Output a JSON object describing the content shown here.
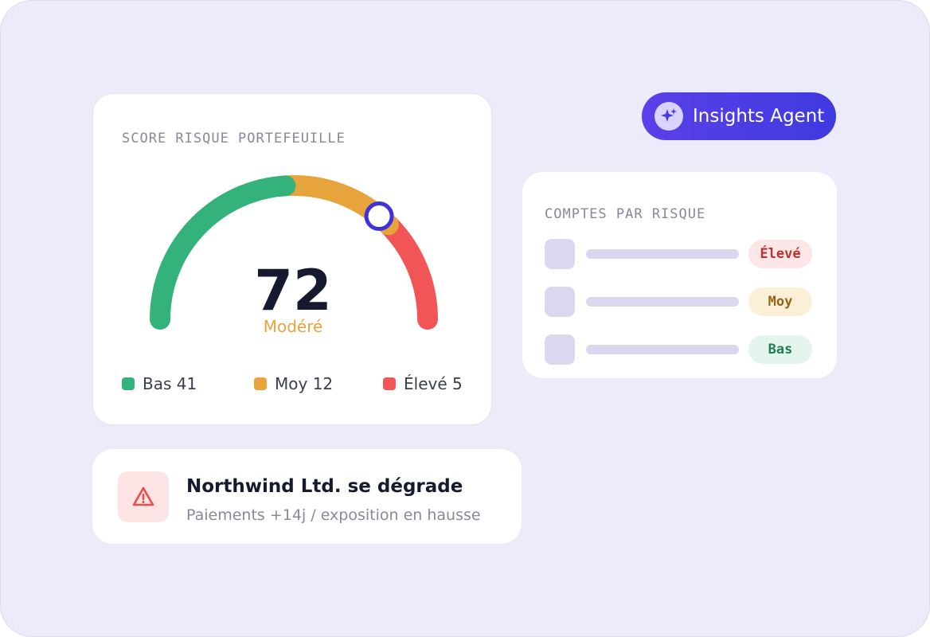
{
  "gauge_card": {
    "title": "SCORE RISQUE PORTEFEUILLE",
    "range": [
      0,
      100
    ],
    "value": 72,
    "status": "Modéré",
    "zones": [
      {
        "from": 0,
        "to": 48,
        "color": "#34b27b"
      },
      {
        "from": 48,
        "to": 75,
        "color": "#e8a43c"
      },
      {
        "from": 75,
        "to": 100,
        "color": "#f25555"
      }
    ],
    "marker_color": "#3d33d9",
    "legend": [
      {
        "name": "Bas",
        "count": 41,
        "color": "#34b27b"
      },
      {
        "name": "Moy",
        "count": 12,
        "color": "#e8a43c"
      },
      {
        "name": "Élevé",
        "count": 5,
        "color": "#f25555"
      }
    ]
  },
  "agent_button": {
    "label": "Insights Agent"
  },
  "accounts_card": {
    "title": "COMPTES PAR RISQUE",
    "rows": [
      {
        "badge": "Élevé"
      },
      {
        "badge": "Moy"
      },
      {
        "badge": "Bas"
      }
    ]
  },
  "alert": {
    "title": "Northwind Ltd. se dégrade",
    "subtitle": "Paiements +14j / exposition en hausse"
  }
}
